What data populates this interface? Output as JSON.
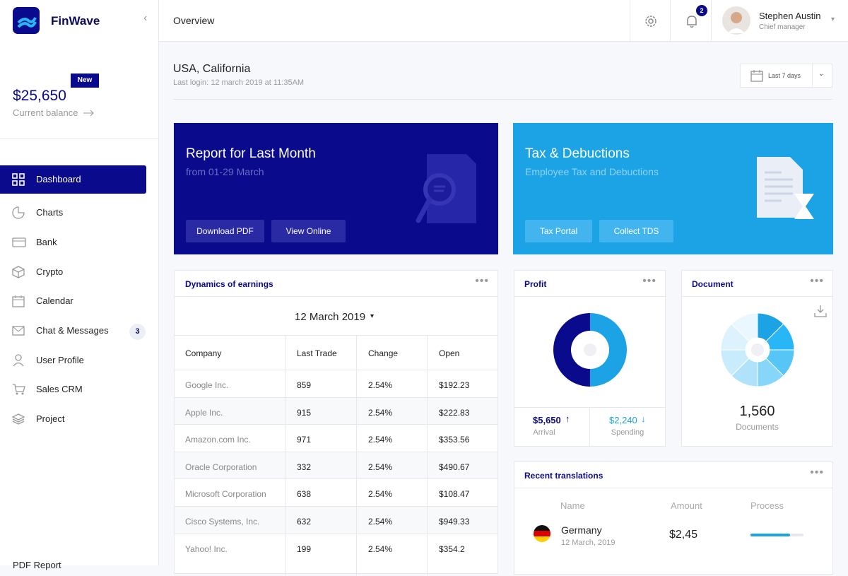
{
  "brand": {
    "name": "FinWave"
  },
  "header": {
    "title": "Overview",
    "notifications": 2,
    "user": {
      "name": "Stephen Austin",
      "role": "Chief manager"
    }
  },
  "sidebar": {
    "badge": "New",
    "balance": "$25,650",
    "balance_label": "Current balance",
    "menu": [
      {
        "label": "Dashboard"
      },
      {
        "label": "Charts"
      },
      {
        "label": "Bank"
      },
      {
        "label": "Crypto"
      },
      {
        "label": "Calendar"
      },
      {
        "label": "Chat & Messages",
        "badge": 3
      },
      {
        "label": "User Profile"
      },
      {
        "label": "Sales CRM"
      },
      {
        "label": "Project"
      }
    ],
    "footer": "PDF Report"
  },
  "location": {
    "title": "USA, California",
    "subtitle": "Last login: 12 march 2019 at 11:35AM",
    "range": "Last 7 days"
  },
  "cards": [
    {
      "title": "Report for Last Month",
      "subtitle": "from 01-29 March",
      "buttons": [
        "Download PDF",
        "View Online"
      ]
    },
    {
      "title": "Tax & Debuctions",
      "subtitle": "Employee Tax and Debuctions",
      "buttons": [
        "Tax Portal",
        "Collect TDS"
      ]
    }
  ],
  "earnings": {
    "title": "Dynamics of earnings",
    "date": "12 March 2019",
    "columns": [
      "Company",
      "Last Trade",
      "Change",
      "Open"
    ],
    "rows": [
      [
        "Google Inc.",
        859,
        "2.54%",
        "$192.23"
      ],
      [
        "Apple Inc.",
        915,
        "2.54%",
        "$222.83"
      ],
      [
        "Amazon.com Inc.",
        971,
        "2.54%",
        "$353.56"
      ],
      [
        "Oracle Corporation",
        332,
        "2.54%",
        "$490.67"
      ],
      [
        "Microsoft Corporation",
        638,
        "2.54%",
        "$108.47"
      ],
      [
        "Cisco Systems, Inc.",
        632,
        "2.54%",
        "$949.33"
      ],
      [
        "Yahoo! Inc.",
        199,
        "2.54%",
        "$354.2"
      ]
    ]
  },
  "profit": {
    "title": "Profit",
    "segments": [
      {
        "value": 50,
        "color": "#1ca3e6"
      },
      {
        "value": 50,
        "color": "#0a0a8c"
      }
    ],
    "stats": [
      {
        "value": "$5,650",
        "label": "Arrival"
      },
      {
        "value": "$2,240",
        "label": "Spending"
      }
    ]
  },
  "document": {
    "title": "Document",
    "segments": [
      {
        "value": 1,
        "color": "#1ca3e6"
      },
      {
        "value": 1,
        "color": "#29b6f6"
      },
      {
        "value": 1,
        "color": "#56c6f7"
      },
      {
        "value": 1,
        "color": "#86d6fa"
      },
      {
        "value": 1,
        "color": "#b0e3fb"
      },
      {
        "value": 1,
        "color": "#c9ecfc"
      },
      {
        "value": 1,
        "color": "#dcf2fd"
      },
      {
        "value": 1,
        "color": "#ebf7fe"
      }
    ],
    "count": "1,560",
    "label": "Documents"
  },
  "translations": {
    "title": "Recent translations",
    "columns": [
      "Name",
      "Amount",
      "Process"
    ],
    "rows": [
      {
        "name": "Germany",
        "date": "12 March, 2019",
        "amount": "$2,45",
        "process": 75
      }
    ]
  }
}
